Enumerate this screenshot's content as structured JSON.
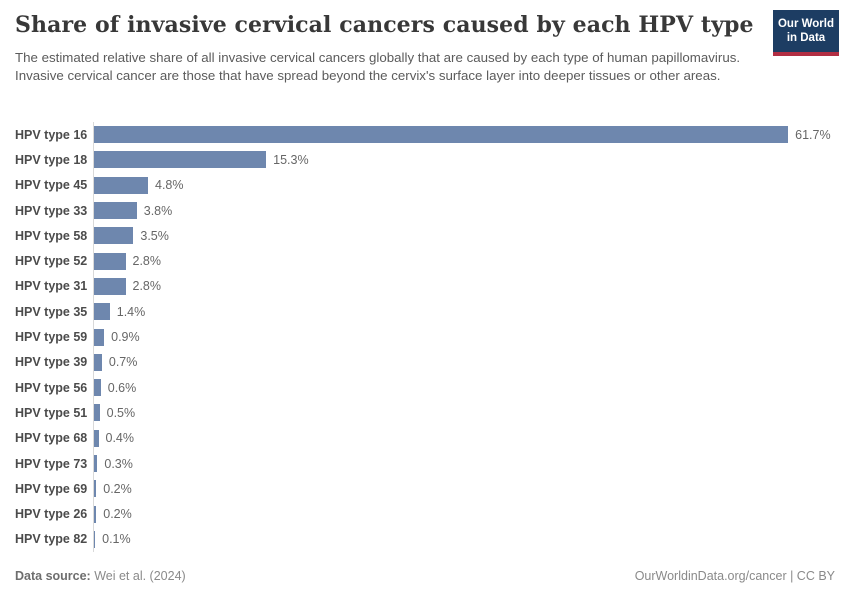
{
  "header": {
    "title": "Share of invasive cervical cancers caused by each HPV type",
    "subtitle": "The estimated relative share of all invasive cervical cancers globally that are caused by each type of human papillomavirus. Invasive cervical cancer are those that have spread beyond the cervix's surface layer into deeper tissues or other areas."
  },
  "logo": {
    "line1": "Our World",
    "line2": "in Data",
    "bg_color": "#1d3d63",
    "accent_color": "#b22e43",
    "text_color": "#ffffff"
  },
  "chart_data": {
    "type": "bar",
    "orientation": "horizontal",
    "title": "Share of invasive cervical cancers caused by each HPV type",
    "unit": "%",
    "grid": false,
    "xlim": [
      0,
      61.7
    ],
    "bar_color": "#6e87ae",
    "categories": [
      "HPV type 16",
      "HPV type 18",
      "HPV type 45",
      "HPV type 33",
      "HPV type 58",
      "HPV type 52",
      "HPV type 31",
      "HPV type 35",
      "HPV type 59",
      "HPV type 39",
      "HPV type 56",
      "HPV type 51",
      "HPV type 68",
      "HPV type 73",
      "HPV type 69",
      "HPV type 26",
      "HPV type 82"
    ],
    "values": [
      61.7,
      15.3,
      4.8,
      3.8,
      3.5,
      2.8,
      2.8,
      1.4,
      0.9,
      0.7,
      0.6,
      0.5,
      0.4,
      0.3,
      0.2,
      0.2,
      0.1
    ],
    "value_labels": [
      "61.7%",
      "15.3%",
      "4.8%",
      "3.8%",
      "3.5%",
      "2.8%",
      "2.8%",
      "1.4%",
      "0.9%",
      "0.7%",
      "0.6%",
      "0.5%",
      "0.4%",
      "0.3%",
      "0.2%",
      "0.2%",
      "0.1%"
    ]
  },
  "footer": {
    "datasource_label": "Data source:",
    "datasource_value": " Wei et al. (2024)",
    "rights": "OurWorldinData.org/cancer | CC BY"
  }
}
